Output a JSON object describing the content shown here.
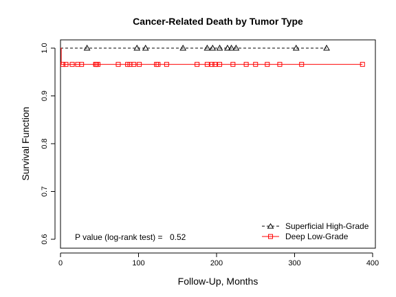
{
  "chart_data": {
    "type": "line",
    "subtype": "kaplan-meier step curve",
    "title": "Cancer-Related Death by Tumor Type",
    "xlabel": "Follow-Up, Months",
    "ylabel": "Survival Function",
    "xlim": [
      0,
      400
    ],
    "ylim": [
      0.6,
      1.0
    ],
    "xticks": [
      0,
      100,
      200,
      300,
      400
    ],
    "yticks": [
      0.6,
      0.7,
      0.8,
      0.9,
      1.0
    ],
    "grid": false,
    "legend_position": "bottom-right",
    "annotation": {
      "label": "P value (log-rank test) =",
      "value": "0.52"
    },
    "series": [
      {
        "name": "Superficial High-Grade",
        "color": "#000000",
        "line_style": "dashed",
        "marker": "triangle",
        "steps": [
          [
            0,
            1.0
          ],
          [
            341,
            1.0
          ]
        ],
        "censored_x": [
          34,
          98,
          109,
          157,
          188,
          195,
          204,
          214,
          219,
          225,
          302,
          341
        ],
        "censored_y": 1.0
      },
      {
        "name": "Deep Low-Grade",
        "color": "#ff0000",
        "line_style": "solid",
        "marker": "square",
        "steps": [
          [
            0,
            1.0
          ],
          [
            1,
            1.0
          ],
          [
            1,
            0.966
          ],
          [
            387,
            0.966
          ]
        ],
        "censored_x": [
          3,
          7,
          15,
          22,
          27,
          45,
          46,
          48,
          74,
          86,
          89,
          94,
          101,
          123,
          125,
          136,
          175,
          188,
          194,
          198,
          204,
          221,
          238,
          250,
          265,
          281,
          309,
          387
        ],
        "censored_y": 0.966
      }
    ]
  }
}
